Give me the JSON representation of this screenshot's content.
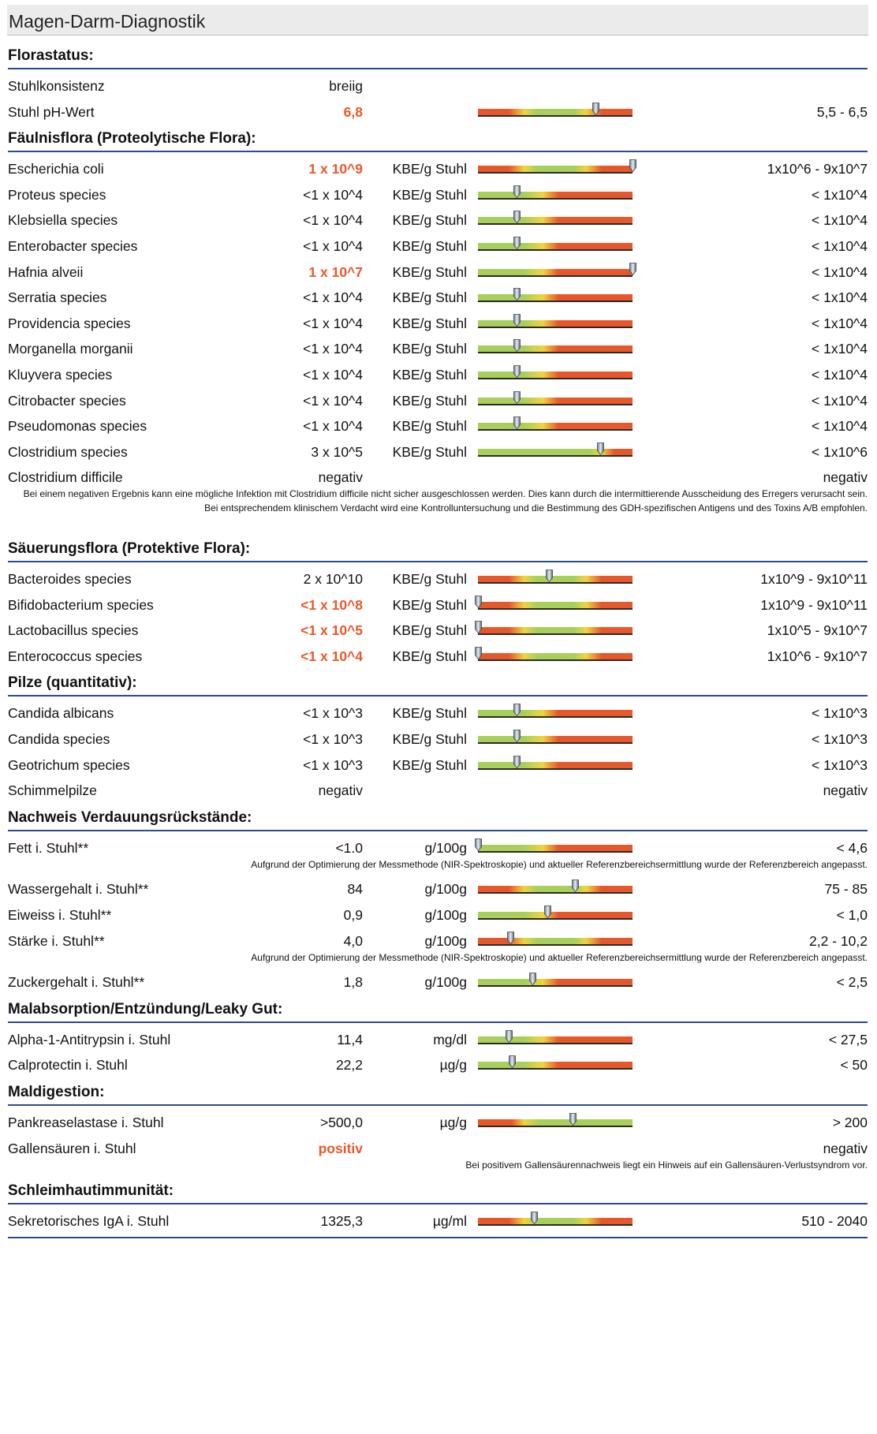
{
  "title": "Magen-Darm-Diagnostik",
  "colors": {
    "abnormal": "#e8572a",
    "section_line": "#2c4a8f",
    "bar_red": "#e8572a",
    "bar_green": "#a8cf5a",
    "bar_yellow": "#f1d43c"
  },
  "sections": [
    {
      "title": "Florastatus:",
      "rows": [
        {
          "name": "Stuhlkonsistenz",
          "value": "breiig",
          "unit": "",
          "ref": "",
          "abnormal": false,
          "bar": null,
          "marker": null
        },
        {
          "name": "Stuhl pH-Wert",
          "value": "6,8",
          "unit": "",
          "ref": "5,5 - 6,5",
          "abnormal": true,
          "bar": "rgr",
          "marker": 0.76
        }
      ]
    },
    {
      "title": "Fäulnisflora (Proteolytische Flora):",
      "rows": [
        {
          "name": "Escherichia coli",
          "value": "1 x 10^9",
          "unit": "KBE/g Stuhl",
          "ref": "1x10^6 - 9x10^7",
          "abnormal": true,
          "bar": "rgr",
          "marker": 1.0
        },
        {
          "name": "Proteus species",
          "value": "<1 x 10^4",
          "unit": "KBE/g Stuhl",
          "ref": "< 1x10^4",
          "abnormal": false,
          "bar": "gr",
          "marker": 0.25
        },
        {
          "name": "Klebsiella species",
          "value": "<1 x 10^4",
          "unit": "KBE/g Stuhl",
          "ref": "< 1x10^4",
          "abnormal": false,
          "bar": "gr",
          "marker": 0.25
        },
        {
          "name": "Enterobacter species",
          "value": "<1 x 10^4",
          "unit": "KBE/g Stuhl",
          "ref": "< 1x10^4",
          "abnormal": false,
          "bar": "gr",
          "marker": 0.25
        },
        {
          "name": "Hafnia alveii",
          "value": "1 x 10^7",
          "unit": "KBE/g Stuhl",
          "ref": "< 1x10^4",
          "abnormal": true,
          "bar": "gr",
          "marker": 1.0
        },
        {
          "name": "Serratia species",
          "value": "<1 x 10^4",
          "unit": "KBE/g Stuhl",
          "ref": "< 1x10^4",
          "abnormal": false,
          "bar": "gr",
          "marker": 0.25
        },
        {
          "name": "Providencia species",
          "value": "<1 x 10^4",
          "unit": "KBE/g Stuhl",
          "ref": "< 1x10^4",
          "abnormal": false,
          "bar": "gr",
          "marker": 0.25
        },
        {
          "name": "Morganella morganii",
          "value": "<1 x 10^4",
          "unit": "KBE/g Stuhl",
          "ref": "< 1x10^4",
          "abnormal": false,
          "bar": "gr",
          "marker": 0.25
        },
        {
          "name": "Kluyvera species",
          "value": "<1 x 10^4",
          "unit": "KBE/g Stuhl",
          "ref": "< 1x10^4",
          "abnormal": false,
          "bar": "gr",
          "marker": 0.25
        },
        {
          "name": "Citrobacter species",
          "value": "<1 x 10^4",
          "unit": "KBE/g Stuhl",
          "ref": "< 1x10^4",
          "abnormal": false,
          "bar": "gr",
          "marker": 0.25
        },
        {
          "name": "Pseudomonas species",
          "value": "<1 x 10^4",
          "unit": "KBE/g Stuhl",
          "ref": "< 1x10^4",
          "abnormal": false,
          "bar": "gr",
          "marker": 0.25
        },
        {
          "name": "Clostridium species",
          "value": "3 x 10^5",
          "unit": "KBE/g Stuhl",
          "ref": "< 1x10^6",
          "abnormal": false,
          "bar": "gr_late",
          "marker": 0.79
        },
        {
          "name": "Clostridium difficile",
          "value": "negativ",
          "unit": "",
          "ref": "negativ",
          "abnormal": false,
          "bar": null,
          "marker": null
        }
      ],
      "note": "Bei einem negativen Ergebnis kann eine mögliche Infektion mit Clostridium difficile nicht sicher ausgeschlossen werden. Dies kann durch die intermittierende Ausscheidung des Erregers verursacht sein. Bei entsprechendem klinischem Verdacht wird eine Kontrolluntersuchung und die Bestimmung des GDH-spezifischen Antigens und des Toxins A/B empfohlen."
    },
    {
      "title": "Säuerungsflora (Protektive Flora):",
      "rows": [
        {
          "name": "Bacteroides species",
          "value": "2 x 10^10",
          "unit": "KBE/g Stuhl",
          "ref": "1x10^9 - 9x10^11",
          "abnormal": false,
          "bar": "rgr",
          "marker": 0.46
        },
        {
          "name": "Bifidobacterium species",
          "value": "<1 x 10^8",
          "unit": "KBE/g Stuhl",
          "ref": "1x10^9 - 9x10^11",
          "abnormal": true,
          "bar": "rgr",
          "marker": 0.0
        },
        {
          "name": "Lactobacillus species",
          "value": "<1 x 10^5",
          "unit": "KBE/g Stuhl",
          "ref": "1x10^5 - 9x10^7",
          "abnormal": true,
          "bar": "rgr",
          "marker": 0.0
        },
        {
          "name": "Enterococcus species",
          "value": "<1 x 10^4",
          "unit": "KBE/g Stuhl",
          "ref": "1x10^6 - 9x10^7",
          "abnormal": true,
          "bar": "rgr",
          "marker": 0.0
        }
      ]
    },
    {
      "title": "Pilze (quantitativ):",
      "rows": [
        {
          "name": "Candida albicans",
          "value": "<1 x 10^3",
          "unit": "KBE/g Stuhl",
          "ref": "< 1x10^3",
          "abnormal": false,
          "bar": "gr",
          "marker": 0.25
        },
        {
          "name": "Candida species",
          "value": "<1 x 10^3",
          "unit": "KBE/g Stuhl",
          "ref": "< 1x10^3",
          "abnormal": false,
          "bar": "gr",
          "marker": 0.25
        },
        {
          "name": "Geotrichum species",
          "value": "<1 x 10^3",
          "unit": "KBE/g Stuhl",
          "ref": "< 1x10^3",
          "abnormal": false,
          "bar": "gr",
          "marker": 0.25
        },
        {
          "name": "Schimmelpilze",
          "value": "negativ",
          "unit": "",
          "ref": "negativ",
          "abnormal": false,
          "bar": null,
          "marker": null
        }
      ]
    },
    {
      "title": "Nachweis Verdauungsrückstände:",
      "rows": [
        {
          "name": "Fett i. Stuhl**",
          "value": "<1.0",
          "unit": "g/100g",
          "ref": "< 4,6",
          "abnormal": false,
          "bar": "gr",
          "marker": 0.0,
          "note": "Aufgrund der Optimierung der Messmethode (NIR-Spektroskopie) und aktueller Referenzbereichsermittlung wurde der Referenzbereich angepasst."
        },
        {
          "name": "Wassergehalt i. Stuhl**",
          "value": "84",
          "unit": "g/100g",
          "ref": "75 - 85",
          "abnormal": false,
          "bar": "rgr",
          "marker": 0.63
        },
        {
          "name": "Eiweiss i. Stuhl**",
          "value": "0,9",
          "unit": "g/100g",
          "ref": "< 1,0",
          "abnormal": false,
          "bar": "gr",
          "marker": 0.45
        },
        {
          "name": "Stärke i. Stuhl**",
          "value": "4,0",
          "unit": "g/100g",
          "ref": "2,2 - 10,2",
          "abnormal": false,
          "bar": "rgr",
          "marker": 0.21,
          "note": "Aufgrund der Optimierung der Messmethode (NIR-Spektroskopie) und aktueller Referenzbereichsermittlung wurde der Referenzbereich angepasst."
        },
        {
          "name": "Zuckergehalt i. Stuhl**",
          "value": "1,8",
          "unit": "g/100g",
          "ref": "< 2,5",
          "abnormal": false,
          "bar": "gr",
          "marker": 0.35
        }
      ]
    },
    {
      "title": "Malabsorption/Entzündung/Leaky Gut:",
      "rows": [
        {
          "name": "Alpha-1-Antitrypsin i. Stuhl",
          "value": "11,4",
          "unit": "mg/dl",
          "ref": "< 27,5",
          "abnormal": false,
          "bar": "gr",
          "marker": 0.2
        },
        {
          "name": "Calprotectin i. Stuhl",
          "value": "22,2",
          "unit": "µg/g",
          "ref": "< 50",
          "abnormal": false,
          "bar": "gr",
          "marker": 0.22
        }
      ]
    },
    {
      "title": "Maldigestion:",
      "rows": [
        {
          "name": "Pankreaselastase i. Stuhl",
          "value": ">500,0",
          "unit": "µg/g",
          "ref": "> 200",
          "abnormal": false,
          "bar": "rg",
          "marker": 0.61
        },
        {
          "name": "Gallensäuren i. Stuhl",
          "value": "positiv",
          "unit": "",
          "ref": "negativ",
          "abnormal": true,
          "bar": null,
          "marker": null,
          "note": "Bei positivem Gallensäurennachweis liegt ein Hinweis auf ein Gallensäuren-Verlustsyndrom vor."
        }
      ]
    },
    {
      "title": "Schleimhautimmunität:",
      "rows": [
        {
          "name": "Sekretorisches IgA i. Stuhl",
          "value": "1325,3",
          "unit": "µg/ml",
          "ref": "510 - 2040",
          "abnormal": false,
          "bar": "rgr",
          "marker": 0.36
        }
      ]
    }
  ]
}
